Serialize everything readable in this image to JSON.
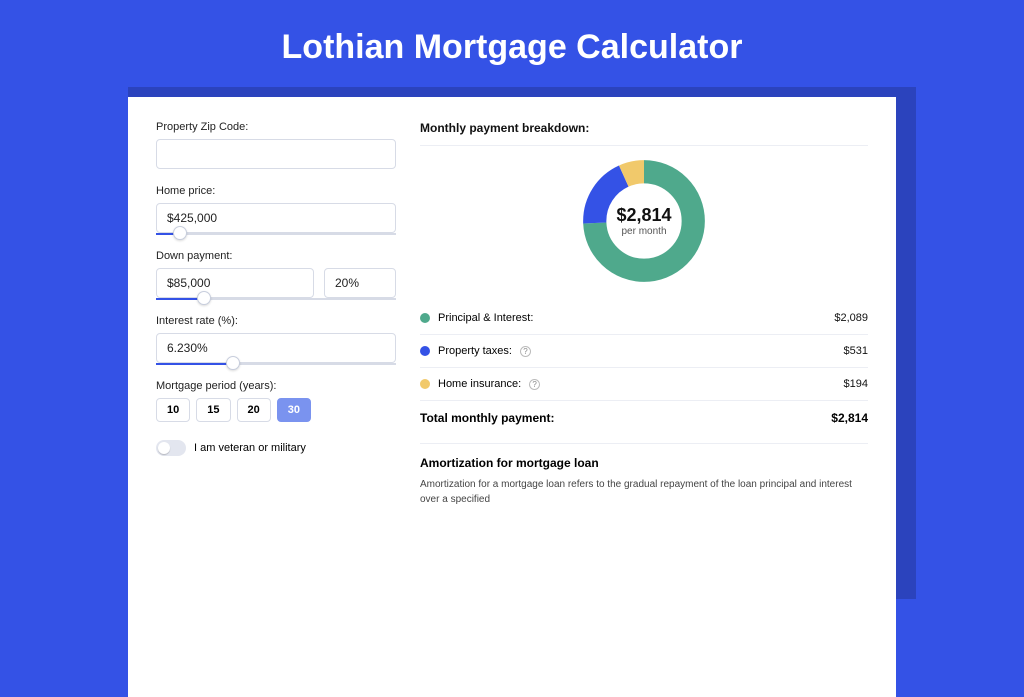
{
  "page": {
    "title": "Lothian Mortgage Calculator"
  },
  "colors": {
    "page_bg": "#3452e6",
    "shadow_bg": "#2b43bd",
    "card_bg": "#ffffff",
    "border": "#d7dbe6",
    "slider_fill": "#3452e6",
    "active_btn_bg": "#7a93ef"
  },
  "form": {
    "zip_label": "Property Zip Code:",
    "zip_value": "",
    "home_price_label": "Home price:",
    "home_price_value": "$425,000",
    "home_price_slider_pct": 10,
    "down_label": "Down payment:",
    "down_amount": "$85,000",
    "down_percent": "20%",
    "down_slider_pct": 20,
    "rate_label": "Interest rate (%):",
    "rate_value": "6.230%",
    "rate_slider_pct": 32,
    "period_label": "Mortgage period (years):",
    "periods": [
      "10",
      "15",
      "20",
      "30"
    ],
    "period_active_index": 3,
    "veteran_label": "I am veteran or military"
  },
  "breakdown": {
    "title": "Monthly payment breakdown:",
    "donut": {
      "total_label": "$2,814",
      "sub_label": "per month",
      "slices": [
        {
          "label": "Principal & Interest",
          "value": 2089,
          "pct": 74.2,
          "color": "#4fa98c"
        },
        {
          "label": "Property taxes",
          "value": 531,
          "pct": 18.9,
          "color": "#3452e6"
        },
        {
          "label": "Home insurance",
          "value": 194,
          "pct": 6.9,
          "color": "#f1c96b"
        }
      ]
    },
    "legend": [
      {
        "label": "Principal & Interest:",
        "value": "$2,089",
        "color": "#4fa98c",
        "info": false
      },
      {
        "label": "Property taxes:",
        "value": "$531",
        "color": "#3452e6",
        "info": true
      },
      {
        "label": "Home insurance:",
        "value": "$194",
        "color": "#f1c96b",
        "info": true
      }
    ],
    "total_label": "Total monthly payment:",
    "total_value": "$2,814"
  },
  "amort": {
    "title": "Amortization for mortgage loan",
    "text": "Amortization for a mortgage loan refers to the gradual repayment of the loan principal and interest over a specified"
  }
}
